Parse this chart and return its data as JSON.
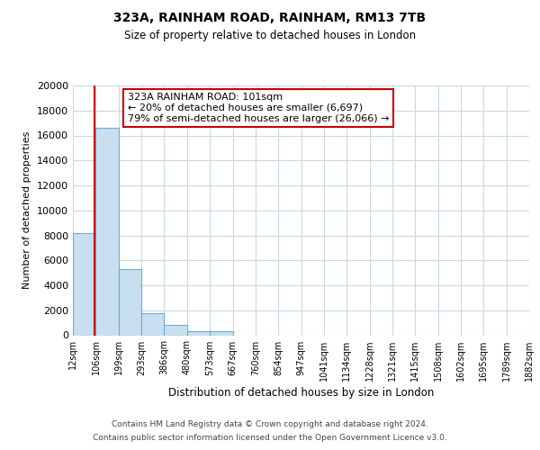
{
  "title": "323A, RAINHAM ROAD, RAINHAM, RM13 7TB",
  "subtitle": "Size of property relative to detached houses in London",
  "xlabel": "Distribution of detached houses by size in London",
  "ylabel": "Number of detached properties",
  "bin_edges": [
    12,
    106,
    199,
    293,
    386,
    480,
    573,
    667,
    760,
    854,
    947,
    1041,
    1134,
    1228,
    1321,
    1415,
    1508,
    1602,
    1695,
    1789,
    1882
  ],
  "bar_values": [
    8200,
    16600,
    5300,
    1800,
    800,
    300,
    300,
    0,
    0,
    0,
    0,
    0,
    0,
    0,
    0,
    0,
    0,
    0,
    0,
    0
  ],
  "bar_color": "#c8dff0",
  "bar_edge_color": "#6aaed6",
  "property_line_x": 101,
  "property_line_color": "#cc0000",
  "ylim": [
    0,
    20000
  ],
  "annotation_title": "323A RAINHAM ROAD: 101sqm",
  "annotation_line1": "← 20% of detached houses are smaller (6,697)",
  "annotation_line2": "79% of semi-detached houses are larger (26,066) →",
  "annotation_box_facecolor": "#ffffff",
  "annotation_box_edgecolor": "#cc0000",
  "footer_line1": "Contains HM Land Registry data © Crown copyright and database right 2024.",
  "footer_line2": "Contains public sector information licensed under the Open Government Licence v3.0.",
  "background_color": "#ffffff",
  "plot_bg_color": "#ffffff",
  "grid_color": "#c8d8e8",
  "yticks": [
    0,
    2000,
    4000,
    6000,
    8000,
    10000,
    12000,
    14000,
    16000,
    18000,
    20000
  ],
  "tick_labels": [
    "12sqm",
    "106sqm",
    "199sqm",
    "293sqm",
    "386sqm",
    "480sqm",
    "573sqm",
    "667sqm",
    "760sqm",
    "854sqm",
    "947sqm",
    "1041sqm",
    "1134sqm",
    "1228sqm",
    "1321sqm",
    "1415sqm",
    "1508sqm",
    "1602sqm",
    "1695sqm",
    "1789sqm",
    "1882sqm"
  ]
}
